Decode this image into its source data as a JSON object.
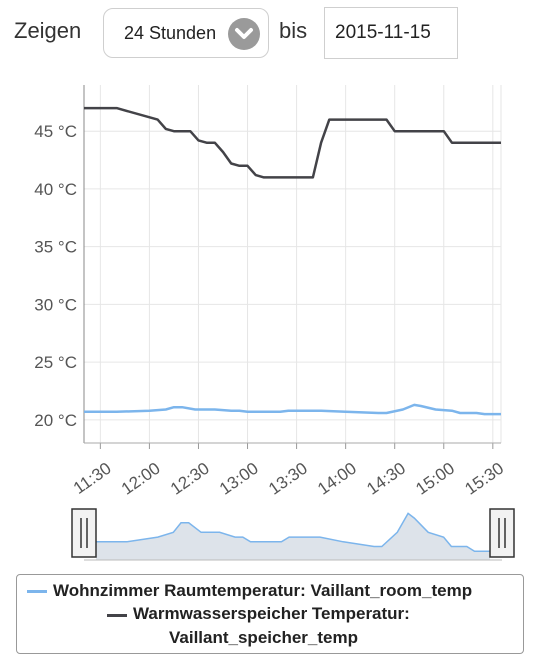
{
  "controls": {
    "show_label": "Zeigen",
    "range_value": "24 Stunden",
    "range_icon": "chevron-down-icon",
    "until_label": "bis",
    "date_value": "2015-11-15"
  },
  "colors": {
    "room_series": "#7cb5ec",
    "tank_series": "#434348",
    "grid": "#e6e6e6",
    "nav_fill": "#dde3ea",
    "nav_line": "#7cb5ec"
  },
  "legend": {
    "items": [
      {
        "label": "Wohnzimmer Raumtemperatur: Vaillant_room_temp"
      },
      {
        "label_line1": "Warmwasserspeicher Temperatur:",
        "label_line2": "Vaillant_speicher_temp"
      }
    ]
  },
  "chart_data": {
    "type": "line",
    "title": "",
    "xlabel": "",
    "ylabel": "",
    "x_tick_labels": [
      "11:30",
      "12:00",
      "12:30",
      "13:00",
      "13:30",
      "14:00",
      "14:30",
      "15:00",
      "15:30"
    ],
    "y_tick_labels": [
      "20 °C",
      "25 °C",
      "30 °C",
      "35 °C",
      "40 °C",
      "45 °C"
    ],
    "y_ticks": [
      20,
      25,
      30,
      35,
      40,
      45
    ],
    "ylim": [
      18,
      49
    ],
    "xlim": [
      "11:20",
      "15:35"
    ],
    "grid": true,
    "legend_position": "bottom",
    "series": [
      {
        "name": "Wohnzimmer Raumtemperatur: Vaillant_room_temp",
        "points": [
          [
            "11:20",
            20.7
          ],
          [
            "11:40",
            20.7
          ],
          [
            "12:00",
            20.8
          ],
          [
            "12:10",
            20.9
          ],
          [
            "12:15",
            21.1
          ],
          [
            "12:20",
            21.1
          ],
          [
            "12:28",
            20.9
          ],
          [
            "12:40",
            20.9
          ],
          [
            "12:50",
            20.8
          ],
          [
            "12:55",
            20.8
          ],
          [
            "13:00",
            20.7
          ],
          [
            "13:20",
            20.7
          ],
          [
            "13:25",
            20.8
          ],
          [
            "13:45",
            20.8
          ],
          [
            "14:00",
            20.7
          ],
          [
            "14:20",
            20.6
          ],
          [
            "14:25",
            20.6
          ],
          [
            "14:35",
            20.9
          ],
          [
            "14:42",
            21.3
          ],
          [
            "14:46",
            21.2
          ],
          [
            "14:55",
            20.9
          ],
          [
            "15:05",
            20.8
          ],
          [
            "15:10",
            20.6
          ],
          [
            "15:20",
            20.6
          ],
          [
            "15:25",
            20.5
          ],
          [
            "15:35",
            20.5
          ]
        ]
      },
      {
        "name": "Warmwasserspeicher Temperatur: Vaillant_speicher_temp",
        "points": [
          [
            "11:20",
            47
          ],
          [
            "11:40",
            47
          ],
          [
            "12:05",
            46
          ],
          [
            "12:10",
            45.2
          ],
          [
            "12:15",
            45
          ],
          [
            "12:25",
            45
          ],
          [
            "12:30",
            44.2
          ],
          [
            "12:35",
            44
          ],
          [
            "12:40",
            44
          ],
          [
            "12:45",
            43.2
          ],
          [
            "12:50",
            42.2
          ],
          [
            "12:55",
            42
          ],
          [
            "13:00",
            42
          ],
          [
            "13:05",
            41.2
          ],
          [
            "13:10",
            41
          ],
          [
            "13:40",
            41
          ],
          [
            "13:45",
            44
          ],
          [
            "13:50",
            46
          ],
          [
            "14:25",
            46
          ],
          [
            "14:30",
            45
          ],
          [
            "15:00",
            45
          ],
          [
            "15:05",
            44
          ],
          [
            "15:35",
            44
          ]
        ]
      }
    ]
  }
}
